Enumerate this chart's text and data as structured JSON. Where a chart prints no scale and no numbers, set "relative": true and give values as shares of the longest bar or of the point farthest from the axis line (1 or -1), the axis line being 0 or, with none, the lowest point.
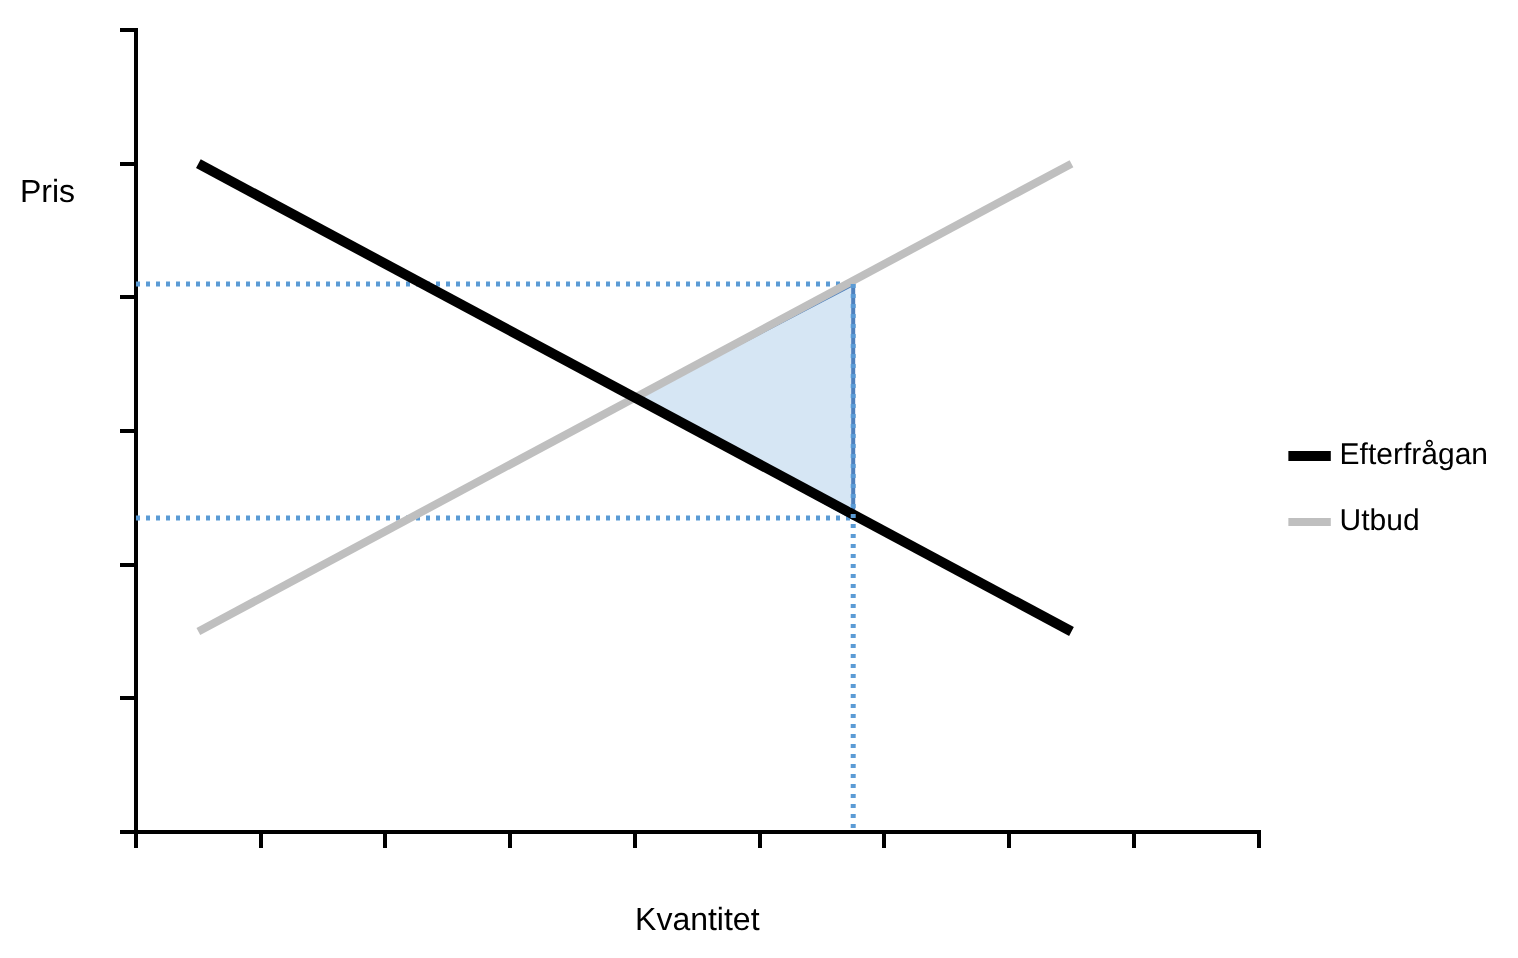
{
  "chart_data": {
    "type": "line",
    "relative": true,
    "xlabel": "Kvantitet",
    "ylabel": "Pris",
    "legend": "right",
    "grid": false,
    "marker": "none",
    "categories": [
      null,
      null,
      null,
      null,
      null,
      null,
      null,
      null,
      null,
      null,
      null,
      null,
      null,
      null,
      null,
      null,
      null,
      null,
      null,
      null,
      null,
      null,
      null,
      null,
      null,
      null,
      null,
      null,
      null,
      null,
      null,
      null,
      null,
      null,
      null,
      null,
      null
    ],
    "series": [
      {
        "name": "Efterfrågan",
        "color": "#000000",
        "line_style": "solid",
        "values": [
          null,
          null,
          1,
          null,
          null,
          null,
          null,
          null,
          null,
          null,
          null,
          null,
          null,
          null,
          null,
          null,
          null,
          null,
          null,
          null,
          null,
          null,
          null,
          null,
          null,
          null,
          null,
          null,
          null,
          null,
          0.3,
          null,
          null,
          null,
          null,
          null,
          null
        ]
      },
      {
        "name": "Utbud",
        "color": "#bfbfbf",
        "line_style": "solid",
        "values": [
          null,
          null,
          0.3,
          null,
          null,
          null,
          null,
          null,
          null,
          null,
          null,
          null,
          null,
          null,
          null,
          null,
          null,
          null,
          null,
          null,
          null,
          null,
          null,
          null,
          null,
          null,
          null,
          null,
          null,
          null,
          1,
          null,
          null,
          null,
          null,
          null,
          null
        ],
        "lower": [
          null,
          null,
          null,
          null,
          null,
          null,
          null,
          null,
          null,
          null,
          null,
          null,
          null,
          null,
          null,
          null,
          0.65,
          null,
          null,
          null,
          null,
          null,
          null,
          0.47,
          null,
          null,
          null,
          null,
          null,
          null,
          null,
          null,
          null,
          null,
          null,
          null,
          null
        ],
        "upper": [
          null,
          null,
          null,
          null,
          null,
          null,
          null,
          null,
          null,
          null,
          null,
          null,
          null,
          null,
          null,
          null,
          0.65,
          null,
          null,
          null,
          null,
          null,
          null,
          0.82,
          null,
          null,
          null,
          null,
          null,
          null,
          null,
          null,
          null,
          null,
          null,
          null,
          null
        ]
      },
      {
        "color": "#5b9bd5",
        "line_style": "dotted",
        "values": [
          0.82,
          null,
          null,
          null,
          null,
          null,
          null,
          null,
          null,
          null,
          null,
          null,
          null,
          null,
          null,
          null,
          null,
          null,
          null,
          null,
          null,
          null,
          null,
          0.82,
          null,
          null,
          null,
          null,
          null,
          null,
          null,
          null,
          null,
          null,
          null,
          null,
          null
        ]
      },
      {
        "color": "#5b9bd5",
        "line_style": "dotted",
        "values": [
          0.47,
          null,
          null,
          null,
          null,
          null,
          null,
          null,
          null,
          null,
          null,
          null,
          null,
          null,
          null,
          null,
          null,
          null,
          null,
          null,
          null,
          null,
          null,
          0.47,
          null,
          null,
          null,
          null,
          null,
          null,
          null,
          null,
          null,
          null,
          null,
          null,
          null
        ]
      }
    ]
  }
}
